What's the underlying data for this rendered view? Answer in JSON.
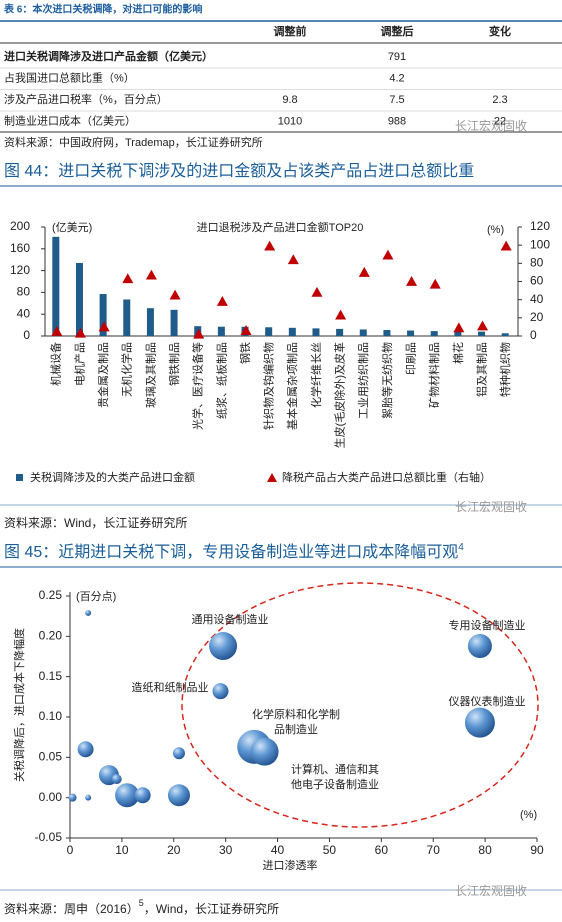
{
  "table": {
    "caption": "表 6：本次进口关税调降，对进口可能的影响",
    "header": [
      "调整前",
      "调整后",
      "变化"
    ],
    "rows": [
      {
        "label": "进口关税调降涉及进口产品金额（亿美元）",
        "after": 791
      },
      {
        "label": "占我国进口总额比重（%）",
        "after": 4.2
      },
      {
        "label": "涉及产品进口税率（%，百分点）",
        "before": 9.8,
        "after": 7.5,
        "change": 2.3
      },
      {
        "label": "制造业进口成本（亿美元）",
        "before": 1010,
        "after": 988,
        "change": 22
      }
    ],
    "source": "资料来源：中国政府网，Trademap，长江证券研究所"
  },
  "watermark": "长江宏观固收",
  "figure44": {
    "title": "图 44：进口关税下调涉及的进口金额及占该类产品占进口总额比重",
    "source": "资料来源：Wind，长江证券研究所"
  },
  "figure45": {
    "title": "图 45：近期进口关税下调，专用设备制造业等进口成本降幅可观",
    "note": "4",
    "source": {
      "before": "资料来源：周申（2016）",
      "note": "5",
      "after": "，Wind，长江证券研究所"
    }
  },
  "chart_data": [
    {
      "type": "combo",
      "title": "进口退税涉及产品进口金额TOP20",
      "y_label": "(亿美元)",
      "y2_label": "(%)",
      "categories": [
        "机械设备",
        "电机产品",
        "贵金属及制品",
        "无机化学品",
        "玻璃及其制品",
        "钢铁制品",
        "光学、医疗设备等",
        "纸浆、纸板制品",
        "钢铁",
        "针织物及钩编织物",
        "基本金属杂项制品",
        "化学纤维长丝",
        "生皮(毛皮除外)及皮革",
        "工业用纺织制品",
        "絮胎等无纺织物",
        "印刷品",
        "矿物材料制品",
        "棉花",
        "铝及其制品",
        "特种机织物"
      ],
      "series": [
        {
          "name": "关税调降涉及的大类产品进口金额",
          "color": "#1f5c8a",
          "mark": "bar",
          "values": [
            182,
            134,
            77,
            67,
            51,
            48,
            18,
            17,
            17,
            16,
            15,
            14,
            13,
            12,
            11,
            10,
            9,
            8,
            8,
            5
          ]
        },
        {
          "name": "降税产品占大类产品进口总额比重（右轴）",
          "color": "#c00000",
          "mark": "triangle",
          "axis": "y2",
          "values": [
            5,
            3,
            10,
            63,
            67,
            45,
            2,
            38,
            6,
            99,
            84,
            48,
            23,
            70,
            89,
            60,
            57,
            9,
            11,
            99
          ]
        }
      ],
      "ylim": [
        0,
        200
      ],
      "yticks": [
        0,
        40,
        80,
        120,
        160,
        200
      ],
      "y2lim": [
        0,
        120
      ],
      "y2ticks": [
        0,
        20,
        40,
        60,
        80,
        100,
        120
      ]
    },
    {
      "type": "bubble",
      "x_label": "进口渗透率",
      "x_unit": "(%)",
      "y_label": "关税调降后，进口成本下降幅度",
      "y_unit": "(百分点)",
      "color": "#3b78bd",
      "x": [
        0.5,
        3,
        3.5,
        3.5,
        7.5,
        9,
        11,
        14,
        21,
        21,
        29.5,
        29,
        35.5,
        37.5,
        79,
        79
      ],
      "values": [
        0,
        0.06,
        0.229,
        0,
        0.028,
        0.023,
        0.003,
        0.003,
        0.055,
        0.003,
        0.188,
        0.132,
        0.063,
        0.057,
        0.188,
        0.093
      ],
      "sizes": [
        4,
        8,
        3,
        3,
        10,
        5,
        12,
        8,
        6,
        11,
        14,
        8,
        17,
        14,
        12,
        15
      ],
      "annotations": [
        [
          "通用设备制造业"
        ],
        [
          "专用设备制造业"
        ],
        [
          "造纸和纸制品业"
        ],
        [
          "仪器仪表制造业"
        ],
        [
          "化学原料和化学制",
          "品制造业"
        ],
        [
          "计算机、通信和其",
          "他电子设备制造业"
        ]
      ],
      "xlim": [
        0,
        90
      ],
      "xticks": [
        0,
        10,
        20,
        30,
        40,
        50,
        60,
        70,
        80,
        90
      ],
      "ylim": [
        -0.05,
        0.25
      ],
      "yticks": [
        {
          "value": -0.05,
          "label": "-0.05"
        },
        {
          "value": 0,
          "label": "0.00"
        },
        {
          "value": 0.05,
          "label": "0.05"
        },
        {
          "value": 0.1,
          "label": "0.10"
        },
        {
          "value": 0.15,
          "label": "0.15"
        },
        {
          "value": 0.2,
          "label": "0.20"
        },
        {
          "value": 0.25,
          "label": "0.25"
        }
      ]
    }
  ]
}
